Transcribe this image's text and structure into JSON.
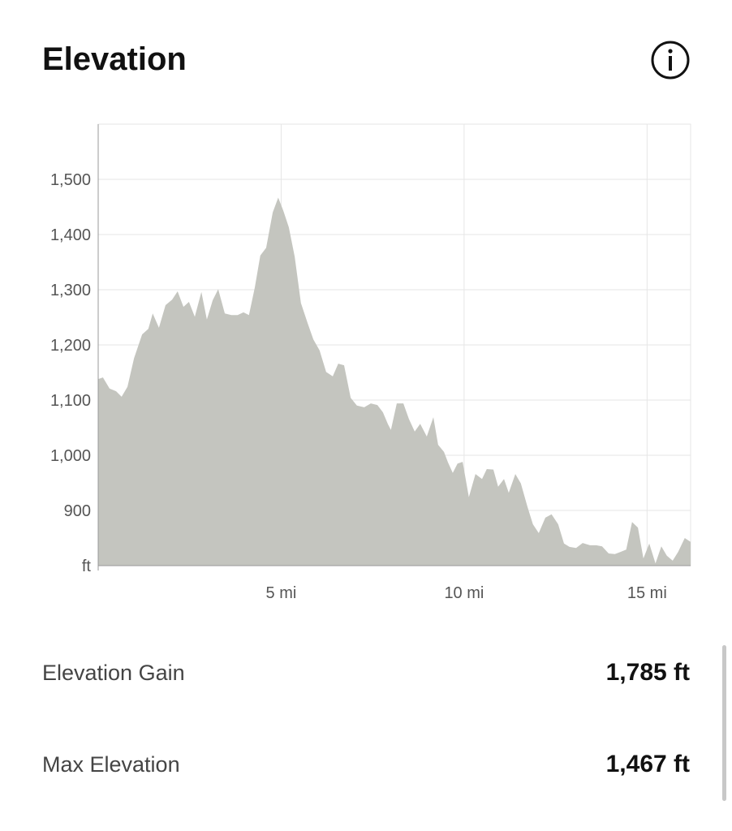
{
  "header": {
    "title": "Elevation"
  },
  "chart_data": {
    "type": "area",
    "color": "#c4c5bf",
    "grid": true,
    "x": [
      0,
      0.13,
      0.31,
      0.49,
      0.64,
      0.8,
      0.98,
      1.2,
      1.37,
      1.49,
      1.66,
      1.84,
      2.02,
      2.17,
      2.33,
      2.48,
      2.64,
      2.82,
      2.97,
      3.13,
      3.28,
      3.46,
      3.64,
      3.81,
      3.97,
      4.12,
      4.28,
      4.43,
      4.59,
      4.77,
      4.92,
      5.06,
      5.21,
      5.37,
      5.54,
      5.72,
      5.88,
      6.05,
      6.23,
      6.41,
      6.56,
      6.72,
      6.9,
      7.07,
      7.27,
      7.45,
      7.63,
      7.78,
      7.92,
      8.0,
      8.16,
      8.34,
      8.49,
      8.65,
      8.8,
      8.98,
      9.16,
      9.29,
      9.45,
      9.56,
      9.69,
      9.82,
      9.96,
      10.13,
      10.31,
      10.49,
      10.62,
      10.8,
      10.93,
      11.09,
      11.22,
      11.4,
      11.55,
      11.73,
      11.88,
      12.04,
      12.22,
      12.39,
      12.57,
      12.73,
      12.88,
      13.06,
      13.24,
      13.44,
      13.61,
      13.77,
      13.95,
      14.12,
      14.28,
      14.43,
      14.59,
      14.75,
      14.9,
      15.06,
      15.23,
      15.39,
      15.54,
      15.7,
      15.85,
      16.03,
      16.19
    ],
    "values": [
      1138,
      1141,
      1121,
      1116,
      1106,
      1124,
      1176,
      1219,
      1229,
      1257,
      1231,
      1272,
      1282,
      1297,
      1269,
      1278,
      1251,
      1296,
      1246,
      1281,
      1301,
      1257,
      1254,
      1254,
      1259,
      1254,
      1304,
      1362,
      1376,
      1440,
      1467,
      1443,
      1413,
      1360,
      1276,
      1240,
      1210,
      1190,
      1151,
      1143,
      1166,
      1163,
      1104,
      1090,
      1087,
      1094,
      1091,
      1078,
      1056,
      1046,
      1094,
      1094,
      1066,
      1043,
      1057,
      1034,
      1069,
      1019,
      1006,
      987,
      968,
      985,
      988,
      924,
      966,
      957,
      975,
      974,
      943,
      957,
      932,
      966,
      949,
      907,
      875,
      859,
      887,
      893,
      875,
      840,
      834,
      832,
      841,
      837,
      837,
      835,
      822,
      821,
      825,
      829,
      879,
      869,
      813,
      840,
      804,
      835,
      818,
      809,
      825,
      850,
      843
    ],
    "xlim": [
      0,
      16.19
    ],
    "xticks": [
      {
        "value": 5,
        "label": "5 mi"
      },
      {
        "value": 10,
        "label": "10 mi"
      },
      {
        "value": 15,
        "label": "15 mi"
      }
    ],
    "ylim": [
      800,
      1600
    ],
    "yticks": [
      {
        "value": 800,
        "label": "ft"
      },
      900,
      {
        "value": 1000,
        "label": "1,000"
      },
      {
        "value": 1100,
        "label": "1,100"
      },
      {
        "value": 1200,
        "label": "1,200"
      },
      {
        "value": 1300,
        "label": "1,300"
      },
      {
        "value": 1400,
        "label": "1,400"
      },
      {
        "value": 1500,
        "label": "1,500"
      }
    ]
  },
  "stats": [
    {
      "label": "Elevation Gain",
      "value": "1,785 ft"
    },
    {
      "label": "Max Elevation",
      "value": "1,467 ft"
    }
  ]
}
